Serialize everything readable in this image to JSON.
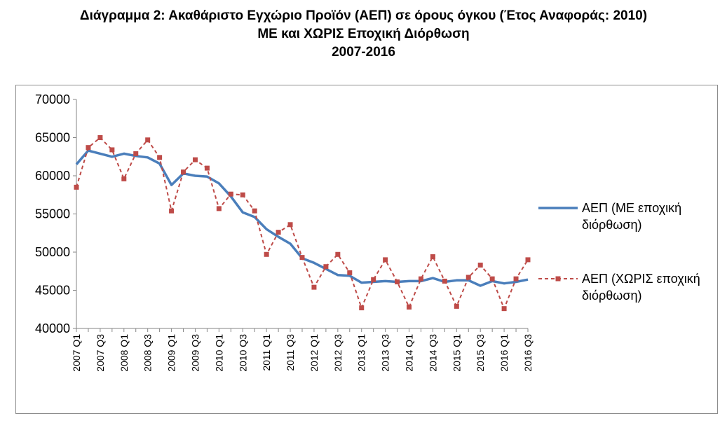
{
  "chart_data": {
    "type": "line",
    "title": "Διάγραμμα 2: Ακαθάριστο Εγχώριο Προϊόν (ΑΕΠ) σε όρους όγκου (Έτος Αναφοράς: 2010)",
    "subtitle": "ΜΕ και ΧΩΡΙΣ Εποχική Διόρθωση",
    "period": "2007-2016",
    "xlabel": "",
    "ylabel": "",
    "ylim": [
      40000,
      70000
    ],
    "yticks": [
      40000,
      45000,
      50000,
      55000,
      60000,
      65000,
      70000
    ],
    "grid": false,
    "legend_position": "right",
    "x": [
      "2007 Q1",
      "2007 Q2",
      "2007 Q3",
      "2007 Q4",
      "2008 Q1",
      "2008 Q2",
      "2008 Q3",
      "2008 Q4",
      "2009 Q1",
      "2009 Q2",
      "2009 Q3",
      "2009 Q4",
      "2010 Q1",
      "2010 Q2",
      "2010 Q3",
      "2010 Q4",
      "2011 Q1",
      "2011 Q2",
      "2011 Q3",
      "2011 Q4",
      "2012 Q1",
      "2012 Q2",
      "2012 Q3",
      "2012 Q4",
      "2013 Q1",
      "2013 Q2",
      "2013 Q3",
      "2013 Q4",
      "2014 Q1",
      "2014 Q2",
      "2014 Q3",
      "2014 Q4",
      "2015 Q1",
      "2015 Q2",
      "2015 Q3",
      "2015 Q4",
      "2016 Q1",
      "2016 Q2",
      "2016 Q3"
    ],
    "xtick_labels": [
      "2007 Q1",
      "2007 Q3",
      "2008 Q1",
      "2008 Q3",
      "2009 Q1",
      "2009 Q3",
      "2010 Q1",
      "2010 Q3",
      "2011 Q1",
      "2011 Q3",
      "2012 Q1",
      "2012 Q3",
      "2013 Q1",
      "2013 Q3",
      "2014 Q1",
      "2014 Q3",
      "2015 Q1",
      "2015 Q3",
      "2016 Q1",
      "2016 Q3"
    ],
    "series": [
      {
        "name": "ΑΕΠ (ΜΕ εποχική διόρθωση)",
        "line1": "ΑΕΠ (ΜΕ εποχική",
        "line2": "διόρθωση)",
        "color": "#4a7ebb",
        "style": "solid",
        "values": [
          61500,
          63300,
          62900,
          62500,
          62900,
          62600,
          62400,
          61600,
          58800,
          60300,
          60000,
          59900,
          59000,
          57300,
          55200,
          54600,
          53000,
          52000,
          51100,
          49200,
          48600,
          47800,
          47000,
          46900,
          46000,
          46100,
          46200,
          46100,
          46200,
          46200,
          46600,
          46100,
          46300,
          46300,
          45600,
          46200,
          45900,
          46100,
          46400
        ]
      },
      {
        "name": "ΑΕΠ (ΧΩΡΙΣ εποχική διόρθωση)",
        "line1": "ΑΕΠ (ΧΩΡΙΣ εποχική",
        "line2": "διόρθωση)",
        "color": "#be4b48",
        "style": "dashed",
        "values": [
          58500,
          63700,
          65000,
          63400,
          59600,
          62900,
          64700,
          62400,
          55400,
          60500,
          62100,
          61000,
          55700,
          57600,
          57500,
          55400,
          49700,
          52600,
          53600,
          49300,
          45400,
          48100,
          49700,
          47300,
          42700,
          46400,
          49000,
          46100,
          42800,
          46500,
          49400,
          46200,
          42900,
          46700,
          48300,
          46500,
          42600,
          46500,
          49000
        ]
      }
    ]
  }
}
